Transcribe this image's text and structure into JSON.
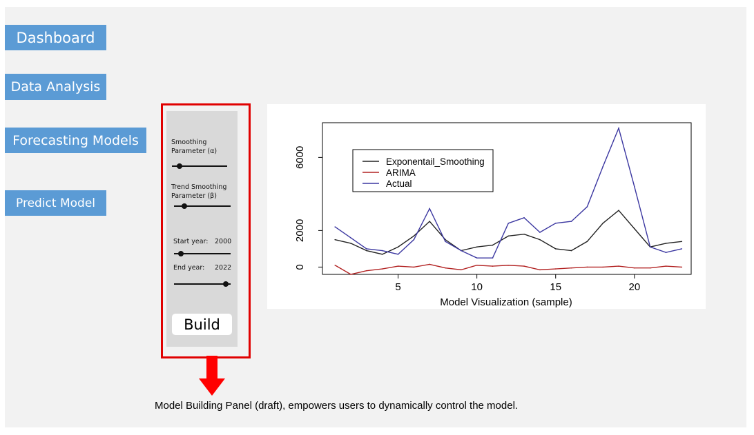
{
  "nav": {
    "dashboard": "Dashboard",
    "data_analysis": "Data Analysis",
    "forecasting_models": "Forecasting Models",
    "predict_model": "Predict Model"
  },
  "panel": {
    "smoothing_label": "Smoothing Parameter (α)",
    "trend_label": "Trend Smoothing Parameter (β)",
    "start_year_label": "Start year:",
    "start_year_value": "2000",
    "end_year_label": "End year:",
    "end_year_value": "2022",
    "build_label": "Build",
    "caption": "Model Building Panel (draft), empowers users to dynamically control the model."
  },
  "sliders": {
    "alpha_level": 0.14,
    "beta_level": 0.18,
    "start_year_level": 0.12,
    "end_year_level": 0.92
  },
  "colors": {
    "nav_bg": "#5b9bd5",
    "frame": "#e00000",
    "arrow": "#ff0000",
    "panel_bg": "#d9d9d9"
  },
  "chart_caption": "Model Visualization (sample)",
  "chart_data": {
    "type": "line",
    "x": [
      1,
      2,
      3,
      4,
      5,
      6,
      7,
      8,
      9,
      10,
      11,
      12,
      13,
      14,
      15,
      16,
      17,
      18,
      19,
      20,
      21,
      22,
      23
    ],
    "xticks": [
      5,
      10,
      15,
      20
    ],
    "yticks": [
      0,
      2000,
      6000
    ],
    "xlim": [
      0.2,
      23.6
    ],
    "ylim": [
      -400,
      7900
    ],
    "series": [
      {
        "name": "Exponentail_Smoothing",
        "color": "#222222",
        "values": [
          1500,
          1300,
          900,
          700,
          1100,
          1700,
          2500,
          1500,
          900,
          1100,
          1200,
          1700,
          1800,
          1500,
          1000,
          900,
          1400,
          2400,
          3100,
          2100,
          1100,
          1300,
          1400
        ]
      },
      {
        "name": "ARIMA",
        "color": "#b22222",
        "values": [
          100,
          -400,
          -200,
          -100,
          50,
          0,
          150,
          -50,
          -150,
          100,
          50,
          100,
          50,
          -150,
          -100,
          -50,
          0,
          0,
          50,
          -50,
          -50,
          50,
          0
        ]
      },
      {
        "name": "Actual",
        "color": "#3a36a0",
        "values": [
          2200,
          1600,
          1000,
          900,
          700,
          1500,
          3200,
          1400,
          900,
          500,
          500,
          2400,
          2700,
          1900,
          2400,
          2500,
          3300,
          5500,
          7600,
          4400,
          1100,
          800,
          1000
        ]
      }
    ],
    "legend": "top-left"
  }
}
